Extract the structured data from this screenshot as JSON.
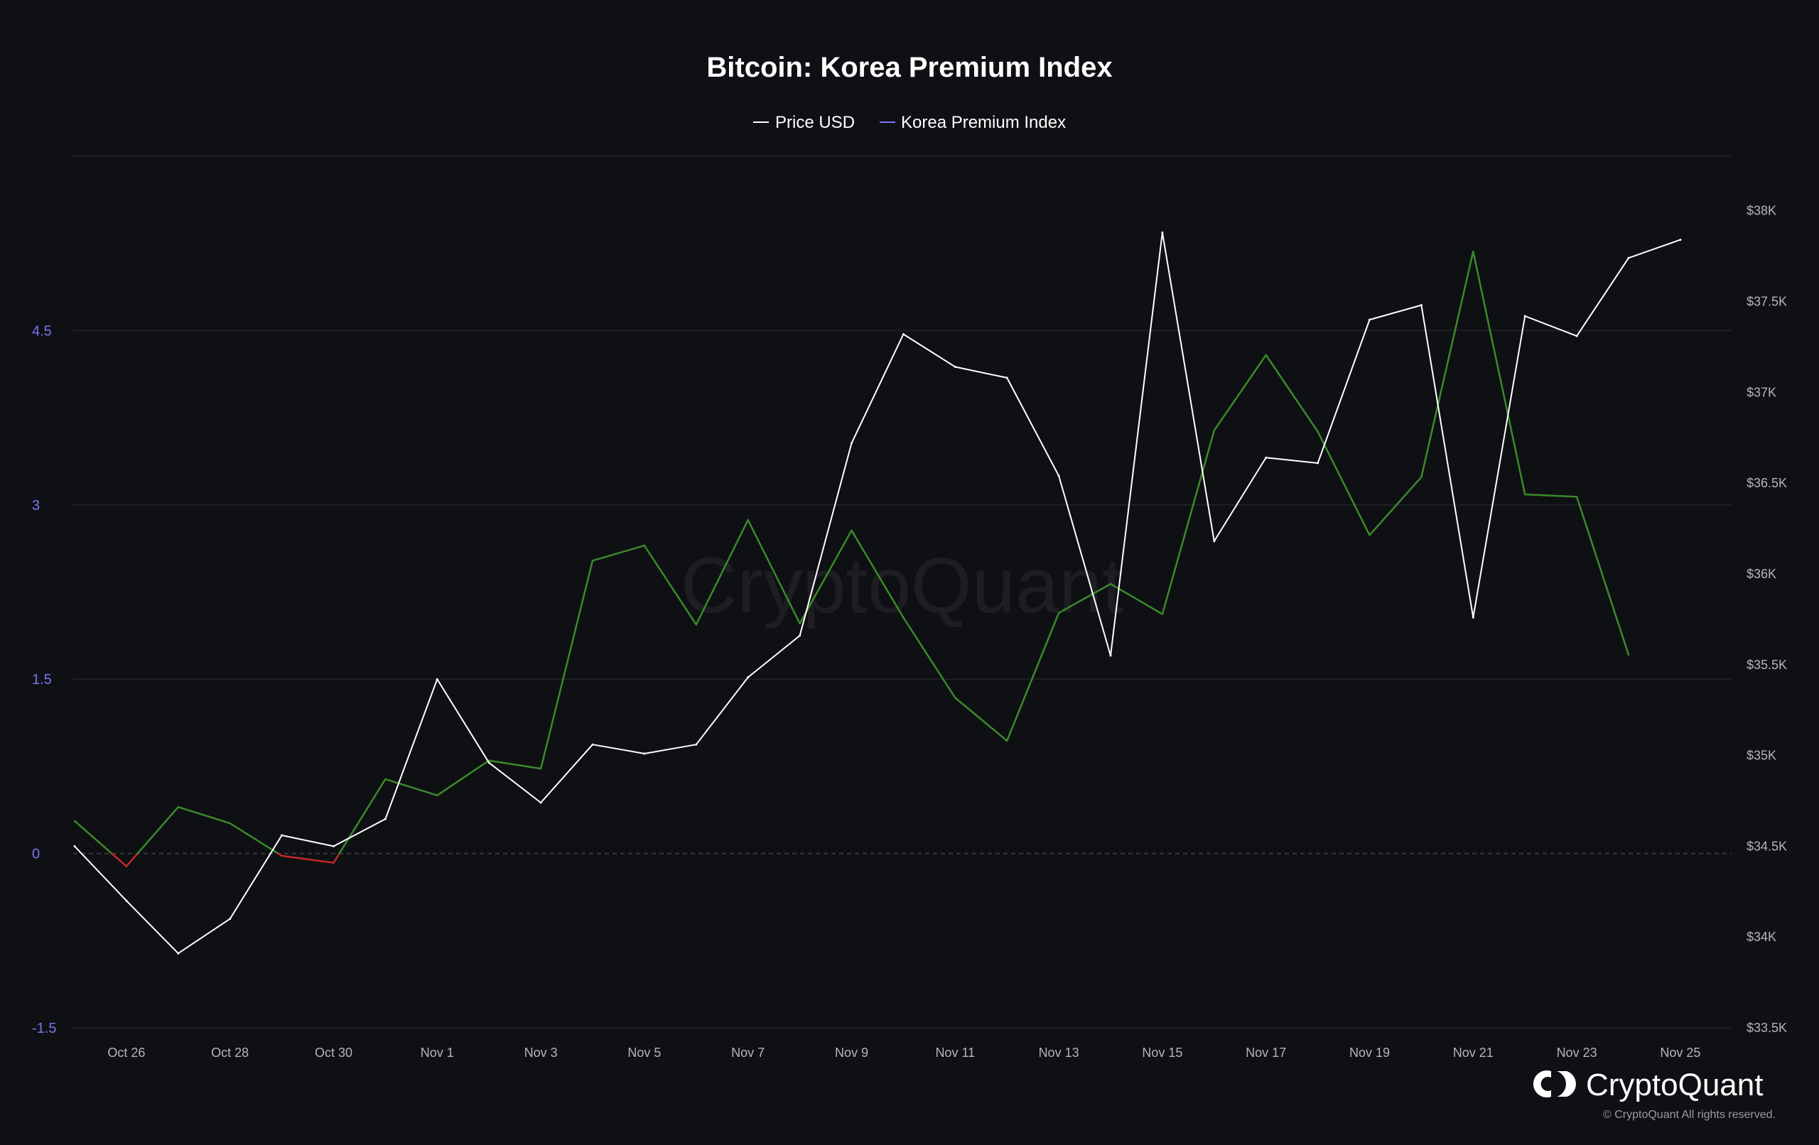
{
  "chart_data": {
    "type": "line",
    "title": "Bitcoin: Korea Premium Index",
    "legend": [
      {
        "label": "Price USD",
        "color": "#ffffff"
      },
      {
        "label": "Korea Premium Index",
        "color": "#7b74f0"
      }
    ],
    "legend_position": "top-center",
    "grid": true,
    "y_left": {
      "ticks": [
        "4.5",
        "3",
        "1.5",
        "0",
        "-1.5"
      ],
      "tick_values": [
        4.5,
        3,
        1.5,
        0,
        -1.5
      ],
      "range": [
        -1.5,
        6.0
      ],
      "color": "#7b74f0"
    },
    "y_right": {
      "ticks": [
        "$38K",
        "$37.5K",
        "$37K",
        "$36.5K",
        "$36K",
        "$35.5K",
        "$35K",
        "$34.5K",
        "$34K",
        "$33.5K"
      ],
      "tick_values": [
        38000,
        37500,
        37000,
        36500,
        36000,
        35500,
        35000,
        34500,
        34000,
        33500
      ],
      "range": [
        33500,
        38300
      ]
    },
    "x_ticks": [
      "Oct 26",
      "Oct 28",
      "Oct 30",
      "Nov 1",
      "Nov 3",
      "Nov 5",
      "Nov 7",
      "Nov 9",
      "Nov 11",
      "Nov 13",
      "Nov 15",
      "Nov 17",
      "Nov 19",
      "Nov 21",
      "Nov 23",
      "Nov 25"
    ],
    "x": [
      "Oct 25",
      "Oct 26",
      "Oct 27",
      "Oct 28",
      "Oct 29",
      "Oct 30",
      "Oct 31",
      "Nov 1",
      "Nov 2",
      "Nov 3",
      "Nov 4",
      "Nov 5",
      "Nov 6",
      "Nov 7",
      "Nov 8",
      "Nov 9",
      "Nov 10",
      "Nov 11",
      "Nov 12",
      "Nov 13",
      "Nov 14",
      "Nov 15",
      "Nov 16",
      "Nov 17",
      "Nov 18",
      "Nov 19",
      "Nov 20",
      "Nov 21",
      "Nov 22",
      "Nov 23",
      "Nov 24",
      "Nov 25"
    ],
    "series": [
      {
        "name": "Price USD",
        "axis": "right",
        "color": "#ffffff",
        "values": [
          34500,
          34200,
          33910,
          34100,
          34560,
          34500,
          34650,
          35420,
          34960,
          34740,
          35060,
          35010,
          35060,
          35430,
          35660,
          36720,
          37320,
          37140,
          37080,
          36540,
          35550,
          37880,
          36180,
          36640,
          36610,
          37400,
          37480,
          35760,
          37420,
          37310,
          37740,
          37840
        ]
      },
      {
        "name": "Korea Premium Index",
        "axis": "left",
        "positive_color": "#3a8a2a",
        "negative_color": "#c42a2a",
        "values": [
          0.28,
          -0.11,
          0.4,
          0.26,
          -0.02,
          -0.08,
          0.64,
          0.5,
          0.8,
          0.73,
          2.52,
          2.65,
          1.97,
          2.87,
          1.98,
          2.78,
          2.03,
          1.34,
          0.97,
          2.07,
          2.32,
          2.06,
          3.64,
          4.29,
          3.63,
          2.74,
          3.24,
          5.18,
          3.09,
          3.07,
          1.71,
          null
        ]
      }
    ]
  },
  "watermark": "CryptoQuant",
  "brand": {
    "name": "CryptoQuant",
    "copyright": "© CryptoQuant All rights reserved."
  }
}
